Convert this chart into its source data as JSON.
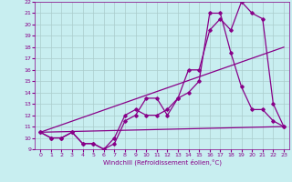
{
  "xlabel": "Windchill (Refroidissement éolien,°C)",
  "xlim": [
    -0.5,
    23.5
  ],
  "ylim": [
    9,
    22
  ],
  "yticks": [
    9,
    10,
    11,
    12,
    13,
    14,
    15,
    16,
    17,
    18,
    19,
    20,
    21,
    22
  ],
  "xticks": [
    0,
    1,
    2,
    3,
    4,
    5,
    6,
    7,
    8,
    9,
    10,
    11,
    12,
    13,
    14,
    15,
    16,
    17,
    18,
    19,
    20,
    21,
    22,
    23
  ],
  "bg_color": "#c8eef0",
  "line_color": "#880088",
  "grid_color": "#aacccc",
  "line1_x": [
    0,
    1,
    2,
    3,
    4,
    5,
    6,
    7,
    8,
    9,
    10,
    11,
    12,
    13,
    14,
    15,
    16,
    17,
    18,
    19,
    20,
    21,
    22,
    23
  ],
  "line1_y": [
    10.5,
    10.0,
    10.0,
    10.5,
    9.5,
    9.5,
    9.0,
    9.5,
    11.5,
    12.0,
    13.5,
    13.5,
    12.0,
    13.5,
    16.0,
    16.0,
    19.5,
    20.5,
    19.5,
    22.0,
    21.0,
    20.5,
    13.0,
    11.0
  ],
  "line2_x": [
    0,
    1,
    2,
    3,
    4,
    5,
    6,
    7,
    8,
    9,
    10,
    11,
    12,
    13,
    14,
    15,
    16,
    17,
    18,
    19,
    20,
    21,
    22,
    23
  ],
  "line2_y": [
    10.5,
    10.0,
    10.0,
    10.5,
    9.5,
    9.5,
    9.0,
    10.0,
    12.0,
    12.5,
    12.0,
    12.0,
    12.5,
    13.5,
    14.0,
    15.0,
    21.0,
    21.0,
    17.5,
    14.5,
    12.5,
    12.5,
    11.5,
    11.0
  ],
  "line3_x": [
    0,
    23
  ],
  "line3_y": [
    10.5,
    11.0
  ],
  "line4_x": [
    0,
    23
  ],
  "line4_y": [
    10.5,
    18.0
  ]
}
